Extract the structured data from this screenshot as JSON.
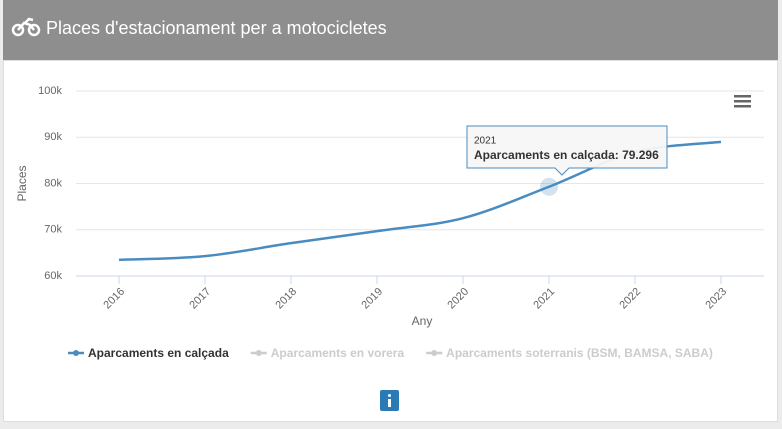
{
  "header": {
    "title": "Places d'estacionament per a motocicletes"
  },
  "chart_data": {
    "type": "line",
    "categories": [
      "2016",
      "2017",
      "2018",
      "2019",
      "2020",
      "2021",
      "2022",
      "2023"
    ],
    "series": [
      {
        "name": "Aparcaments en calçada",
        "color": "#4a8cc0",
        "visible": true,
        "values": [
          63500,
          64300,
          67100,
          69700,
          72500,
          79296,
          86800,
          89000
        ]
      },
      {
        "name": "Aparcaments en vorera",
        "color": "#cccccc",
        "visible": false,
        "values": [
          null,
          null,
          null,
          null,
          null,
          null,
          null,
          null
        ]
      },
      {
        "name": "Aparcaments soterranis (BSM, BAMSA, SABA)",
        "color": "#cccccc",
        "visible": false,
        "values": [
          null,
          null,
          null,
          null,
          null,
          null,
          null,
          null
        ]
      }
    ],
    "ylabel": "Places",
    "xlabel": "Any",
    "ylim": [
      60000,
      100000
    ],
    "yticks": [
      {
        "value": 60000,
        "label": "60k"
      },
      {
        "value": 70000,
        "label": "70k"
      },
      {
        "value": 80000,
        "label": "80k"
      },
      {
        "value": 90000,
        "label": "90k"
      },
      {
        "value": 100000,
        "label": "100k"
      }
    ],
    "grid": true,
    "tooltip": {
      "category": "2021",
      "text": "Aparcaments en calçada: 79.296"
    }
  }
}
